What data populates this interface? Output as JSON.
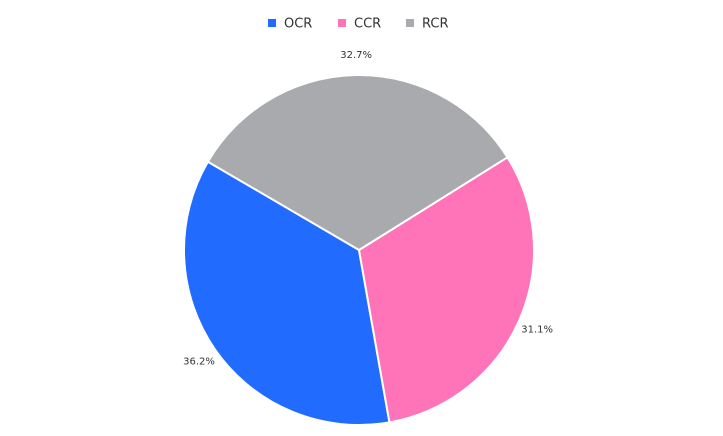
{
  "chart_data": {
    "type": "pie",
    "categories": [
      "OCR",
      "CCR",
      "RCR"
    ],
    "values": [
      36.2,
      31.1,
      32.7
    ],
    "value_labels": [
      "36.2%",
      "31.1%",
      "32.7%"
    ],
    "colors": [
      "#216bff",
      "#ff74b8",
      "#a9aaad"
    ],
    "legend": "top"
  }
}
